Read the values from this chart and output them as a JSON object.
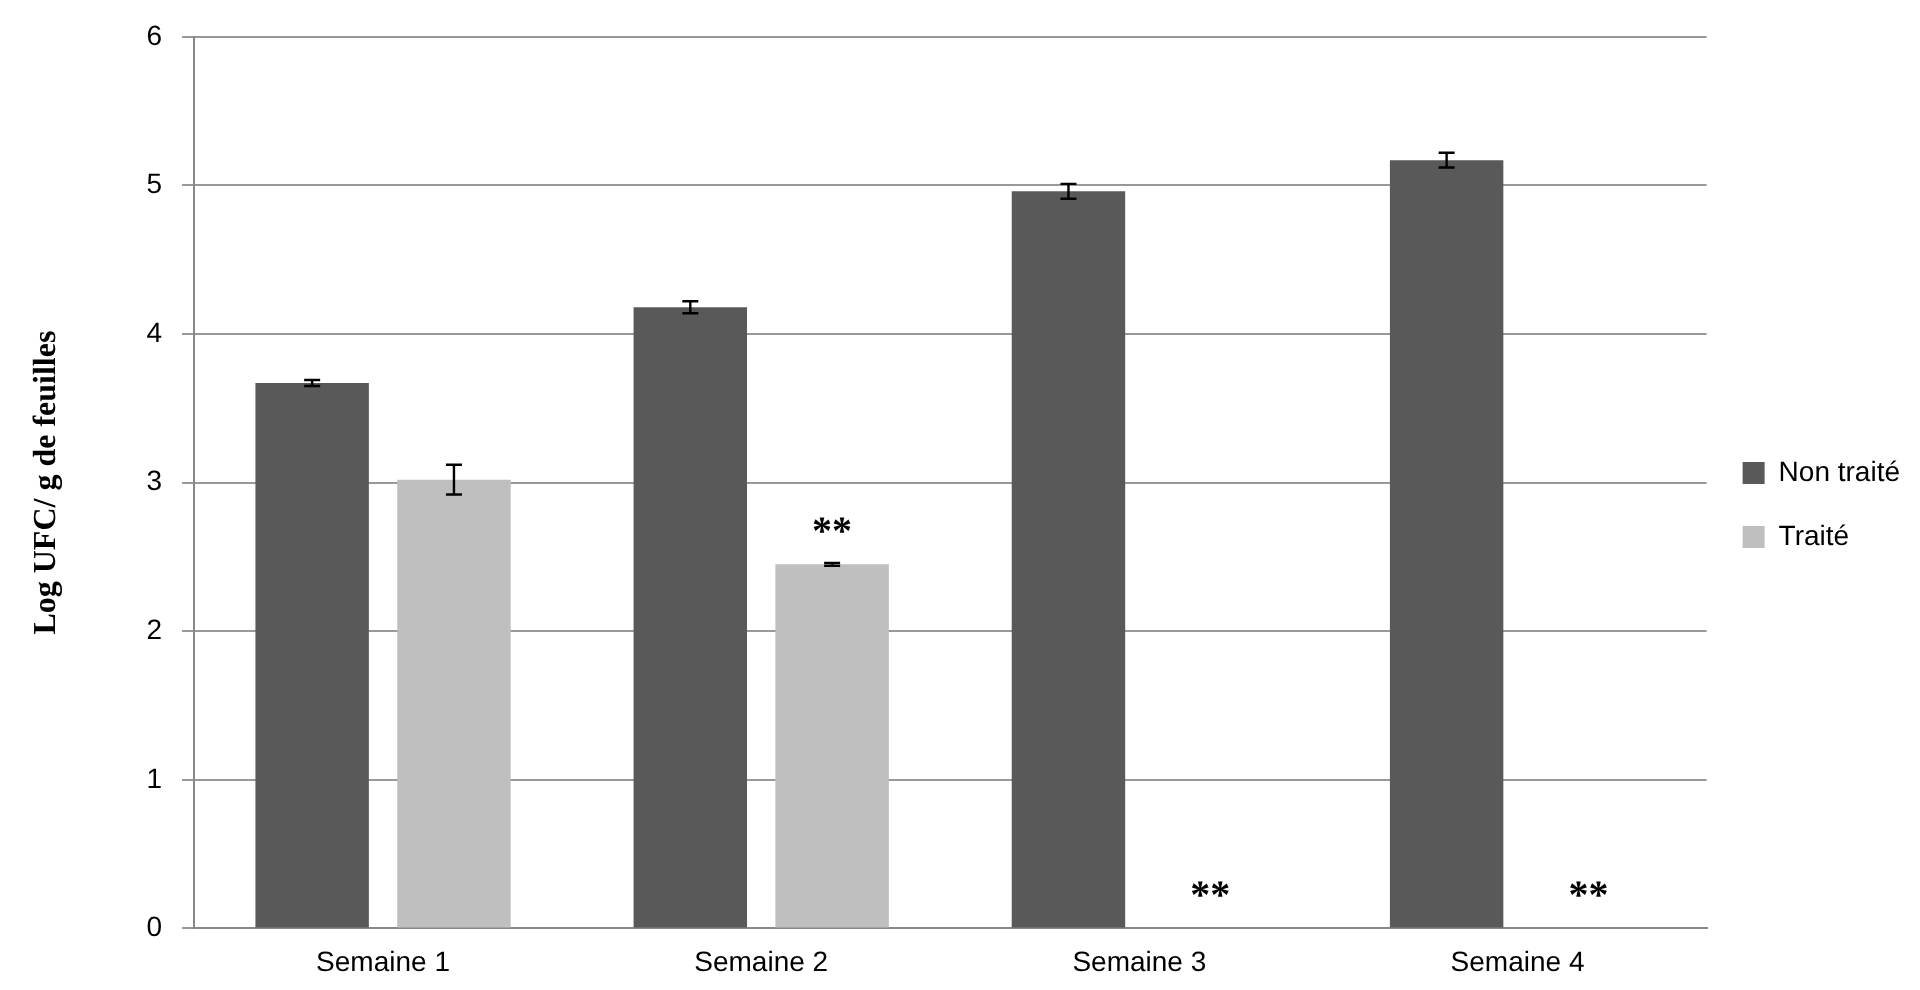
{
  "chart_data": {
    "type": "bar",
    "ylabel": "Log UFC/ g de feuilles",
    "categories": [
      "Semaine 1",
      "Semaine 2",
      "Semaine 3",
      "Semaine 4"
    ],
    "series": [
      {
        "name": "Non traité",
        "color": "#595959",
        "values": [
          3.67,
          4.18,
          4.96,
          5.17
        ],
        "errors": [
          0.02,
          0.04,
          0.05,
          0.05
        ]
      },
      {
        "name": "Traité",
        "color": "#bfbfbf",
        "values": [
          3.02,
          2.45,
          0,
          0
        ],
        "errors": [
          0.1,
          0.01,
          null,
          null
        ]
      }
    ],
    "ylim": [
      0,
      6
    ],
    "yticks": [
      0,
      1,
      2,
      3,
      4,
      5,
      6
    ],
    "grid": "y",
    "legend": "right",
    "annotations": [
      "**",
      "**",
      "**"
    ]
  }
}
